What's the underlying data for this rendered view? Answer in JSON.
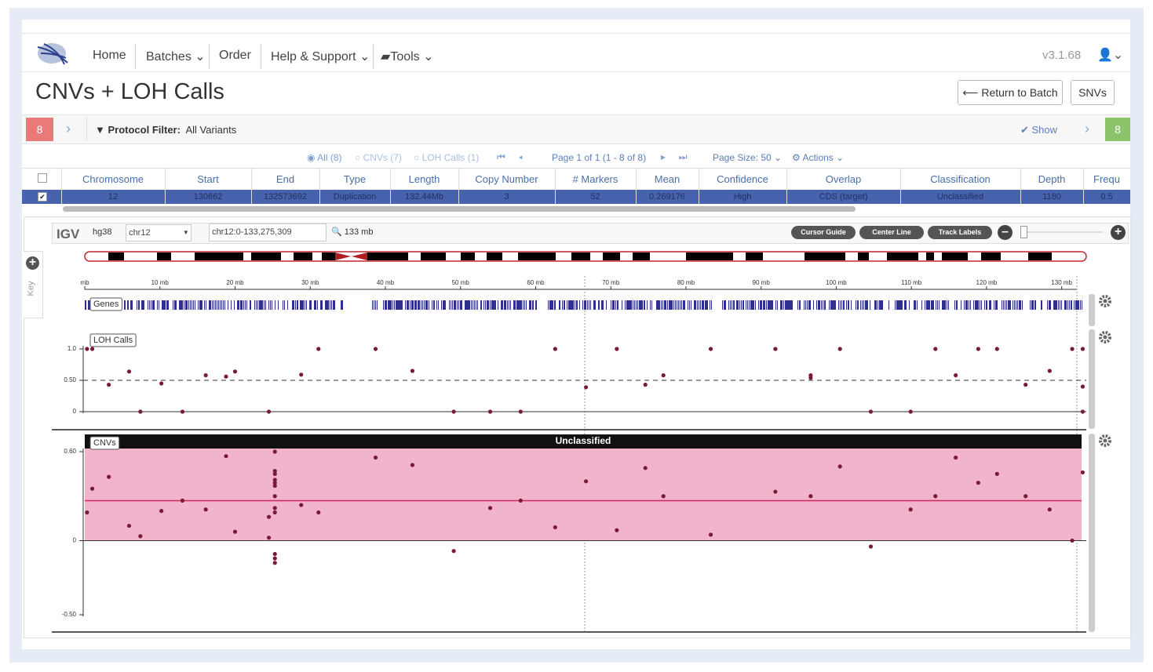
{
  "nav": {
    "items": [
      "Home",
      "Batches",
      "Order",
      "Help & Support",
      "Tools"
    ],
    "version": "v3.1.68"
  },
  "header": {
    "title": "CNVs + LOH Calls",
    "buttons": [
      "Return to Batch",
      "SNVs"
    ]
  },
  "filter": {
    "left_count": "8",
    "label": "Protocol Filter:",
    "value": "All Variants",
    "show": "Show",
    "right_count": "8"
  },
  "toolbar": {
    "radios": [
      "All (8)",
      "CNVs (7)",
      "LOH Calls (1)"
    ],
    "page": "Page 1 of 1 (1 - 8 of 8)",
    "page_size": "Page Size: 50",
    "actions": "Actions"
  },
  "table": {
    "columns": [
      "Chromosome",
      "Start",
      "End",
      "Type",
      "Length",
      "Copy Number",
      "# Markers",
      "Mean",
      "Confidence",
      "Overlap",
      "Classification",
      "Depth",
      "Frequ"
    ],
    "rows": [
      [
        "12",
        "130662",
        "132573692",
        "Duplication",
        "132.44Mb",
        "3",
        "52",
        "0.269176",
        "High",
        "CDS (target)",
        "Unclassified",
        "1180",
        "0.5"
      ]
    ]
  },
  "igv": {
    "label": "IGV",
    "genome": "hg38",
    "chrom": "chr12",
    "locus": "chr12:0-133,275,309",
    "span": "133 mb",
    "buttons": [
      "Cursor Guide",
      "Center Line",
      "Track Labels"
    ],
    "key": "Key",
    "ruler": {
      "xlim": [
        0,
        133.275309
      ],
      "xticks": [
        {
          "value": 0,
          "label": "mb"
        },
        {
          "value": 10,
          "label": "10 mb"
        },
        {
          "value": 20,
          "label": "20 mb"
        },
        {
          "value": 30,
          "label": "30 mb"
        },
        {
          "value": 40,
          "label": "40 mb"
        },
        {
          "value": 50,
          "label": "50 mb"
        },
        {
          "value": 60,
          "label": "60 mb"
        },
        {
          "value": 70,
          "label": "70 mb"
        },
        {
          "value": 80,
          "label": "80 mb"
        },
        {
          "value": 90,
          "label": "90 mb"
        },
        {
          "value": 100,
          "label": "100 mb"
        },
        {
          "value": 110,
          "label": "110 mb"
        },
        {
          "value": 120,
          "label": "120 mb"
        },
        {
          "value": 130,
          "label": "130 mb"
        }
      ]
    },
    "genes": {
      "label": "Genes"
    },
    "loh": {
      "type": "scatter",
      "label": "LOH Calls",
      "color": "#7a1a35",
      "ylim": [
        0,
        1
      ],
      "yticks": [
        0,
        {
          "value": 0.5,
          "label": "0.50"
        },
        {
          "value": 1,
          "label": "1.0"
        }
      ],
      "x": [
        0.3,
        1.0,
        3.2,
        5.9,
        7.4,
        10.2,
        13.0,
        16.1,
        18.8,
        20.0,
        24.5,
        28.8,
        31.1,
        38.7,
        43.6,
        49.1,
        53.95,
        58.0,
        62.6,
        66.7,
        70.8,
        74.6,
        77.0,
        83.3,
        91.9,
        96.6,
        96.6,
        100.5,
        104.6,
        109.9,
        113.2,
        115.9,
        118.9,
        121.4,
        125.2,
        128.4,
        131.4,
        132.8,
        132.8,
        132.8
      ],
      "values": [
        1.0,
        1.0,
        0.43,
        0.64,
        0,
        0.45,
        0,
        0.58,
        0.56,
        0.64,
        0,
        0.59,
        1.0,
        1.0,
        0.65,
        0,
        0,
        0,
        1.0,
        0.39,
        1.0,
        0.43,
        0.58,
        1.0,
        1.0,
        0.58,
        0.54,
        1.0,
        0,
        0,
        1.0,
        0.58,
        1.0,
        1.0,
        0.43,
        0.65,
        1.0,
        1.0,
        0.4,
        0
      ]
    },
    "cnv": {
      "type": "scatter",
      "label": "CNVs",
      "banner": "Unclassified",
      "color": "#7a1a35",
      "ylim": [
        -0.5,
        0.6
      ],
      "yticks": [
        {
          "value": -0.5,
          "label": "-0.50"
        },
        0,
        {
          "value": 0.6,
          "label": "0.60"
        }
      ],
      "x": [
        0.3,
        1.0,
        3.2,
        5.9,
        7.4,
        10.2,
        13.0,
        16.1,
        18.8,
        20.0,
        24.5,
        24.5,
        25.3,
        25.3,
        25.3,
        25.3,
        25.3,
        25.3,
        25.3,
        25.3,
        25.3,
        25.3,
        25.3,
        25.3,
        28.8,
        31.1,
        38.7,
        43.6,
        49.1,
        53.95,
        58.0,
        62.6,
        66.7,
        70.8,
        74.6,
        77.0,
        83.3,
        91.9,
        96.6,
        100.5,
        104.6,
        109.9,
        113.2,
        115.9,
        118.9,
        121.4,
        125.2,
        128.4,
        131.4,
        132.8
      ],
      "values": [
        0.19,
        0.35,
        0.43,
        0.1,
        0.03,
        0.2,
        0.27,
        0.21,
        0.57,
        0.06,
        0.16,
        0.02,
        0.6,
        0.47,
        0.45,
        0.41,
        0.39,
        0.37,
        0.3,
        0.22,
        0.19,
        -0.09,
        -0.12,
        -0.15,
        0.24,
        0.19,
        0.56,
        0.51,
        -0.07,
        0.22,
        0.27,
        0.09,
        0.4,
        0.07,
        0.49,
        0.3,
        0.04,
        0.33,
        0.3,
        0.5,
        -0.04,
        0.21,
        0.3,
        0.56,
        0.39,
        0.45,
        0.3,
        0.21,
        0,
        0.46
      ]
    }
  }
}
